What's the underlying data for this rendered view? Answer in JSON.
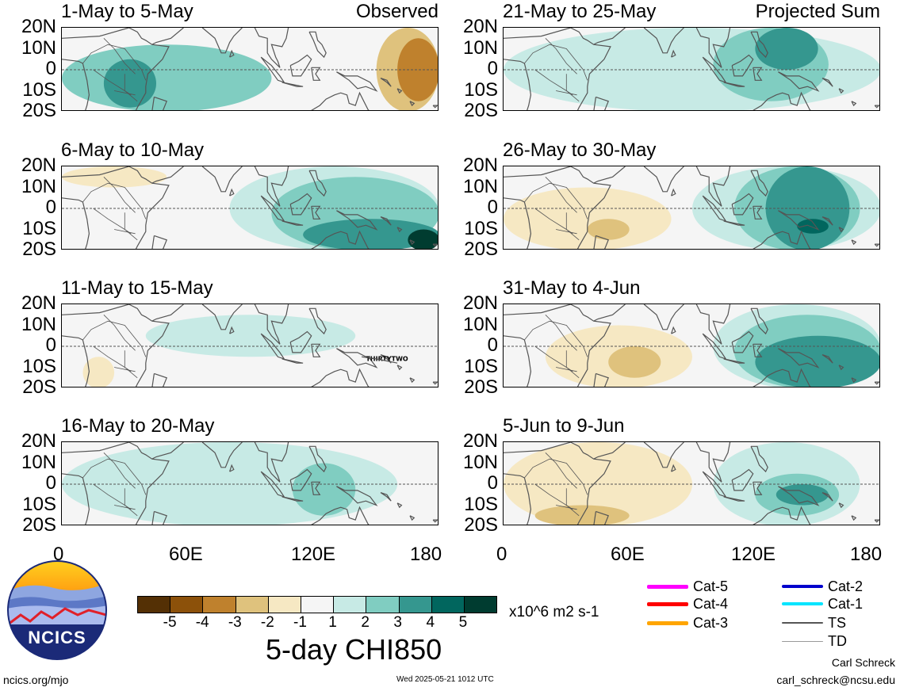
{
  "colors": {
    "neg5": "#543005",
    "neg4": "#8c510a",
    "neg3": "#bf812d",
    "neg2": "#dfc27d",
    "neg1": "#f6e8c3",
    "zero": "#f5f5f5",
    "pos1": "#c7eae5",
    "pos2": "#80cdc1",
    "pos3": "#35978f",
    "pos4": "#01665e",
    "pos5": "#003c30",
    "coast": "#555555",
    "equator": "#555555"
  },
  "panels": [
    {
      "title": "1-May to 5-May",
      "tag": "Observed"
    },
    {
      "title": "21-May to 25-May",
      "tag": "Projected Sum"
    },
    {
      "title": "6-May to 10-May",
      "tag": ""
    },
    {
      "title": "26-May to 30-May",
      "tag": ""
    },
    {
      "title": "11-May to 15-May",
      "tag": "",
      "annotation": "THIRTYTWO"
    },
    {
      "title": "31-May to 4-Jun",
      "tag": ""
    },
    {
      "title": "16-May to 20-May",
      "tag": ""
    },
    {
      "title": "5-Jun to 9-Jun",
      "tag": ""
    }
  ],
  "axes": {
    "y_ticks": [
      "20N",
      "10N",
      "0",
      "10S",
      "20S"
    ],
    "x_ticks": [
      "0",
      "60E",
      "120E",
      "180"
    ]
  },
  "colorbar": {
    "labels": [
      "-5",
      "-4",
      "-3",
      "-2",
      "-1",
      "1",
      "2",
      "3",
      "4",
      "5"
    ],
    "units": "x10^6 m2 s-1",
    "title": "5-day CHI850"
  },
  "storm_legend": [
    {
      "label": "Cat-5",
      "color": "#ff00ff",
      "width": 5
    },
    {
      "label": "Cat-2",
      "color": "#0000cc",
      "width": 4
    },
    {
      "label": "Cat-4",
      "color": "#ff0000",
      "width": 5
    },
    {
      "label": "Cat-1",
      "color": "#00e5ff",
      "width": 4
    },
    {
      "label": "Cat-3",
      "color": "#ffa500",
      "width": 5
    },
    {
      "label": "TS",
      "color": "#555555",
      "width": 2
    },
    {
      "label": "TD",
      "color": "#999999",
      "width": 1
    }
  ],
  "logo": {
    "text": "NCICS"
  },
  "footer": {
    "url": "ncics.org/mjo",
    "timestamp": "Wed 2025-05-21 1012 UTC",
    "author": "Carl Schreck",
    "email": "carl_schreck@ncsu.edu"
  },
  "chart_data": {
    "type": "heatmap",
    "title": "5-day CHI850",
    "units": "x10^6 m2 s-1",
    "domain": {
      "lon": [
        0,
        180
      ],
      "lat": [
        -20,
        20
      ]
    },
    "legend_levels": [
      -5,
      -4,
      -3,
      -2,
      -1,
      1,
      2,
      3,
      4,
      5
    ],
    "maps": [
      {
        "period": "1-May to 5-May",
        "kind": "Observed",
        "features": [
          {
            "lon": [
              0,
              100
            ],
            "lat": [
              -20,
              12
            ],
            "value": 2
          },
          {
            "lon": [
              20,
              45
            ],
            "lat": [
              -18,
              5
            ],
            "value": 3
          },
          {
            "lon": [
              150,
              180
            ],
            "lat": [
              -20,
              20
            ],
            "value": -2
          },
          {
            "lon": [
              160,
              180
            ],
            "lat": [
              -15,
              15
            ],
            "value": -3
          }
        ]
      },
      {
        "period": "21-May to 25-May",
        "kind": "Projected",
        "features": [
          {
            "lon": [
              0,
              180
            ],
            "lat": [
              -20,
              20
            ],
            "value": 1
          },
          {
            "lon": [
              100,
              155
            ],
            "lat": [
              -15,
              20
            ],
            "value": 2
          },
          {
            "lon": [
              120,
              150
            ],
            "lat": [
              0,
              20
            ],
            "value": 3
          }
        ]
      },
      {
        "period": "6-May to 10-May",
        "kind": "Observed",
        "features": [
          {
            "lon": [
              0,
              50
            ],
            "lat": [
              10,
              20
            ],
            "value": -1
          },
          {
            "lon": [
              80,
              180
            ],
            "lat": [
              -20,
              20
            ],
            "value": 1
          },
          {
            "lon": [
              100,
              180
            ],
            "lat": [
              -20,
              15
            ],
            "value": 2
          },
          {
            "lon": [
              115,
              180
            ],
            "lat": [
              -20,
              -5
            ],
            "value": 3
          },
          {
            "lon": [
              165,
              180
            ],
            "lat": [
              -20,
              -10
            ],
            "value": 5
          }
        ]
      },
      {
        "period": "26-May to 30-May",
        "kind": "Projected",
        "features": [
          {
            "lon": [
              0,
              80
            ],
            "lat": [
              -20,
              10
            ],
            "value": -1
          },
          {
            "lon": [
              40,
              60
            ],
            "lat": [
              -15,
              -5
            ],
            "value": -2
          },
          {
            "lon": [
              90,
              180
            ],
            "lat": [
              -20,
              20
            ],
            "value": 1
          },
          {
            "lon": [
              110,
              170
            ],
            "lat": [
              -20,
              20
            ],
            "value": 2
          },
          {
            "lon": [
              125,
              165
            ],
            "lat": [
              -20,
              20
            ],
            "value": 3
          },
          {
            "lon": [
              140,
              155
            ],
            "lat": [
              -12,
              -5
            ],
            "value": 4
          }
        ]
      },
      {
        "period": "11-May to 15-May",
        "kind": "Observed",
        "features": [
          {
            "lon": [
              40,
              140
            ],
            "lat": [
              -5,
              15
            ],
            "value": 1
          },
          {
            "lon": [
              10,
              25
            ],
            "lat": [
              -20,
              -5
            ],
            "value": -1
          }
        ]
      },
      {
        "period": "31-May to 4-Jun",
        "kind": "Projected",
        "features": [
          {
            "lon": [
              20,
              90
            ],
            "lat": [
              -20,
              10
            ],
            "value": -1
          },
          {
            "lon": [
              50,
              75
            ],
            "lat": [
              -15,
              0
            ],
            "value": -2
          },
          {
            "lon": [
              100,
              180
            ],
            "lat": [
              -20,
              20
            ],
            "value": 1
          },
          {
            "lon": [
              110,
              180
            ],
            "lat": [
              -20,
              15
            ],
            "value": 2
          },
          {
            "lon": [
              120,
              180
            ],
            "lat": [
              -20,
              5
            ],
            "value": 3
          }
        ]
      },
      {
        "period": "16-May to 20-May",
        "kind": "Observed",
        "features": [
          {
            "lon": [
              0,
              160
            ],
            "lat": [
              -20,
              20
            ],
            "value": 1
          },
          {
            "lon": [
              110,
              140
            ],
            "lat": [
              -15,
              10
            ],
            "value": 2
          }
        ]
      },
      {
        "period": "5-Jun to 9-Jun",
        "kind": "Projected",
        "features": [
          {
            "lon": [
              0,
              90
            ],
            "lat": [
              -20,
              20
            ],
            "value": -1
          },
          {
            "lon": [
              15,
              60
            ],
            "lat": [
              -20,
              -10
            ],
            "value": -2
          },
          {
            "lon": [
              100,
              170
            ],
            "lat": [
              -20,
              20
            ],
            "value": 1
          },
          {
            "lon": [
              120,
              160
            ],
            "lat": [
              -15,
              5
            ],
            "value": 2
          },
          {
            "lon": [
              130,
              155
            ],
            "lat": [
              -10,
              0
            ],
            "value": 3
          }
        ]
      }
    ]
  }
}
